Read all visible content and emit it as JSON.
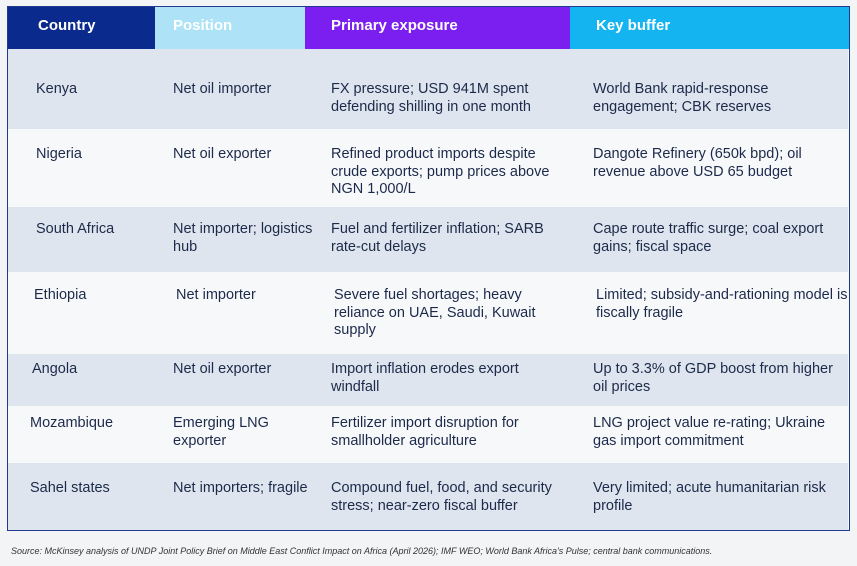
{
  "headers": [
    "Country",
    "Position",
    "Primary exposure",
    "Key buffer"
  ],
  "rows": [
    {
      "country": "Kenya",
      "position": "Net oil importer",
      "exposure": "FX pressure; USD 941M spent defending shilling in one month",
      "buffer": "World Bank rapid-response engagement; CBK reserves"
    },
    {
      "country": "Nigeria",
      "position": "Net oil exporter",
      "exposure": "Refined product imports despite crude exports; pump prices above NGN 1,000/L",
      "buffer": "Dangote Refinery (650k bpd); oil revenue above USD 65 budget"
    },
    {
      "country": "South Africa",
      "position": "Net importer; logistics hub",
      "exposure": "Fuel and fertilizer inflation; SARB rate-cut delays",
      "buffer": "Cape route traffic surge; coal export gains; fiscal space"
    },
    {
      "country": "Ethiopia",
      "position": "Net importer",
      "exposure": "Severe fuel shortages; heavy reliance on UAE, Saudi, Kuwait supply",
      "buffer": "Limited; subsidy-and-rationing model is fiscally fragile"
    },
    {
      "country": "Angola",
      "position": "Net oil exporter",
      "exposure": "Import inflation erodes export windfall",
      "buffer": "Up to 3.3% of GDP boost from higher oil prices"
    },
    {
      "country": "Mozambique",
      "position": "Emerging LNG exporter",
      "exposure": "Fertilizer import disruption for smallholder agriculture",
      "buffer": "LNG project value re-rating; Ukraine gas import commitment"
    },
    {
      "country": "Sahel states",
      "position": "Net importers; fragile",
      "exposure": "Compound fuel, food, and security stress; near-zero fiscal buffer",
      "buffer": "Very limited; acute humanitarian risk profile"
    }
  ],
  "source": "Source: McKinsey analysis of UNDP Joint Policy Brief on Middle East Conflict Impact on Africa (April 2026); IMF WEO; World Bank Africa's Pulse; central bank communications."
}
